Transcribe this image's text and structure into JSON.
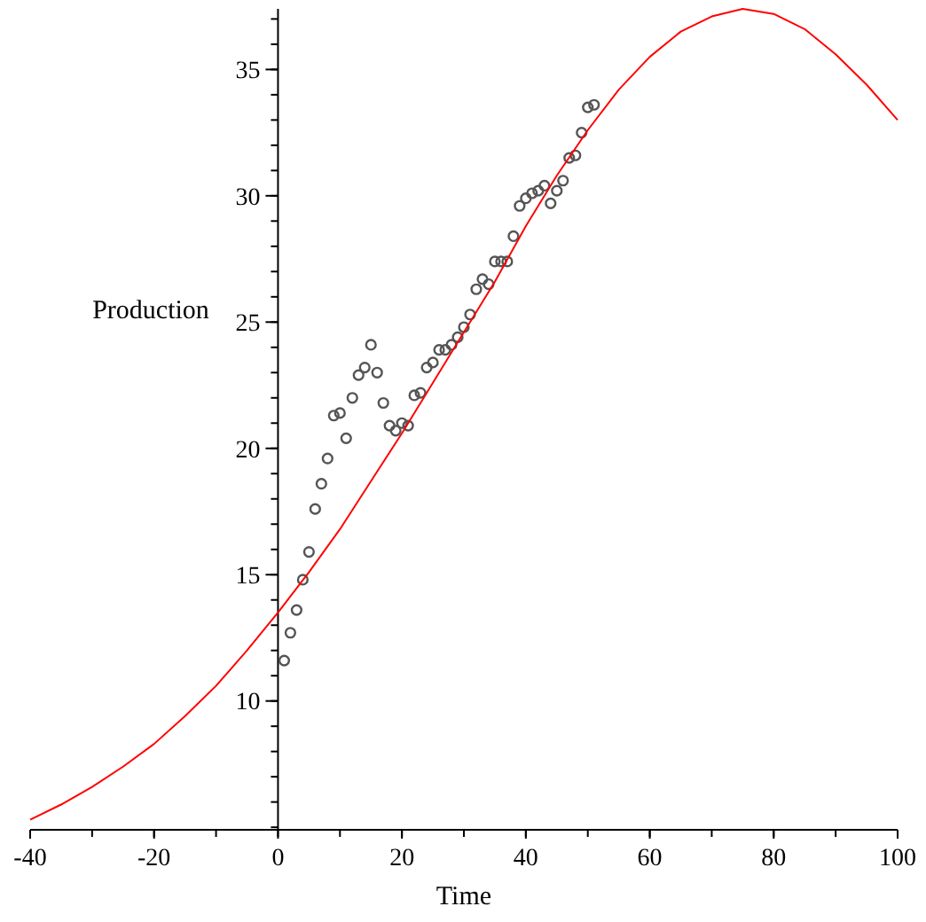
{
  "chart_data": {
    "type": "scatter",
    "xlabel": "Time",
    "ylabel": "Production",
    "xlim": [
      -40,
      100
    ],
    "ylim": [
      4.9,
      37.4
    ],
    "xticks": [
      -40,
      -20,
      0,
      20,
      40,
      60,
      80,
      100
    ],
    "yticks": [
      10,
      15,
      20,
      25,
      30,
      35
    ],
    "grid": false,
    "series": [
      {
        "color": "#555555",
        "marker": "circle",
        "x": [
          1,
          2,
          3,
          4,
          5,
          6,
          7,
          8,
          9,
          10,
          11,
          12,
          13,
          14,
          15,
          16,
          17,
          18,
          19,
          20,
          21,
          22,
          23,
          24,
          25,
          26,
          27,
          28,
          29,
          30,
          31,
          32,
          33,
          34,
          35,
          36,
          37,
          38,
          39,
          40,
          41,
          42,
          43,
          44,
          45,
          46,
          47,
          48,
          49,
          50,
          51
        ],
        "values": [
          11.6,
          12.7,
          13.6,
          14.8,
          15.9,
          17.6,
          18.6,
          19.6,
          21.3,
          21.4,
          20.4,
          22.0,
          22.9,
          23.2,
          24.1,
          23.0,
          21.8,
          20.9,
          20.7,
          21.0,
          20.9,
          22.1,
          22.2,
          23.2,
          23.4,
          23.9,
          23.9,
          24.1,
          24.4,
          24.8,
          25.3,
          26.3,
          26.7,
          26.5,
          27.4,
          27.4,
          27.4,
          28.4,
          29.6,
          29.9,
          30.1,
          30.2,
          30.4,
          29.7,
          30.2,
          30.6,
          31.5,
          31.6,
          32.5,
          33.5,
          33.6
        ]
      },
      {
        "type": "line",
        "color": "#ff0000",
        "marker": "none",
        "line_style": "solid",
        "x": [
          -40,
          -35,
          -30,
          -25,
          -20,
          -15,
          -10,
          -5,
          0,
          5,
          10,
          15,
          20,
          25,
          30,
          35,
          40,
          45,
          50,
          55,
          60,
          65,
          70,
          75,
          80,
          85,
          90,
          95,
          100
        ],
        "values": [
          5.3,
          5.9,
          6.6,
          7.4,
          8.3,
          9.4,
          10.6,
          12.0,
          13.5,
          15.1,
          16.8,
          18.7,
          20.6,
          22.6,
          24.6,
          26.6,
          28.8,
          30.8,
          32.6,
          34.2,
          35.5,
          36.5,
          37.1,
          37.4,
          37.2,
          36.6,
          35.6,
          34.4,
          33.0
        ]
      }
    ]
  }
}
